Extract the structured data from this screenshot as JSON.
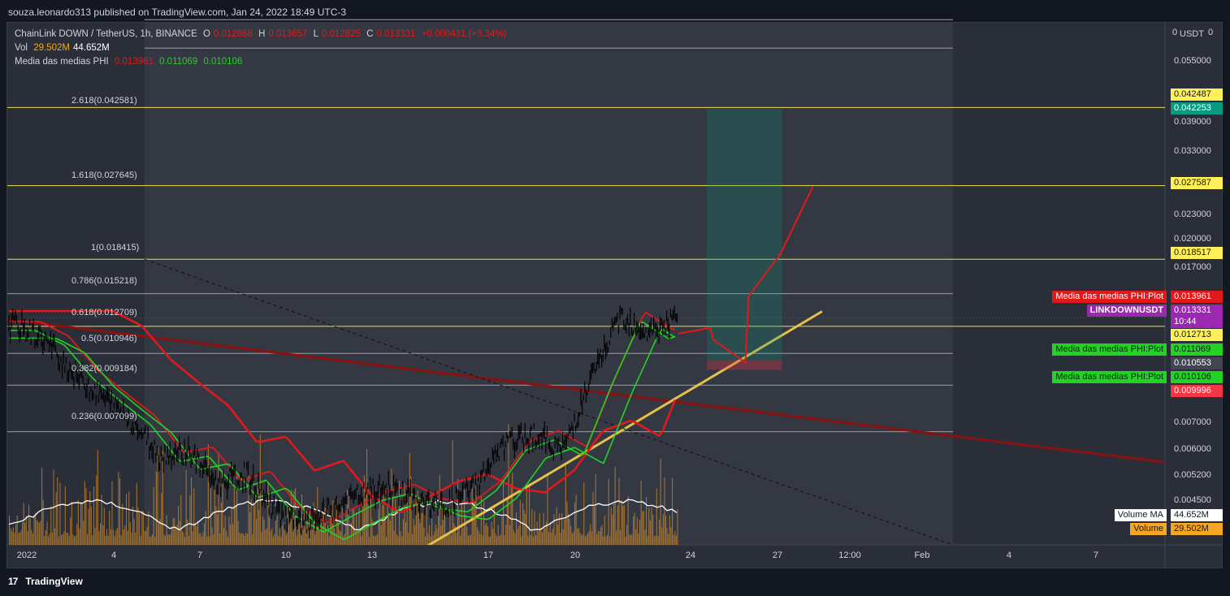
{
  "header": {
    "published": "souza.leonardo313 published on TradingView.com, Jan 24, 2022 18:49 UTC-3"
  },
  "legend": {
    "symbol": "ChainLink DOWN / TetherUS, 1h, BINANCE",
    "o_label": "O",
    "o": "0.012868",
    "h_label": "H",
    "h": "0.013657",
    "l_label": "L",
    "l": "0.012825",
    "c_label": "C",
    "c": "0.013331",
    "chg": "+0.000431 (+3.34%)",
    "vol_label": "Vol",
    "vol": "29.502M",
    "vol_ma": "44.652M",
    "phi_label": "Media das medias PHI",
    "phi1": "0.013961",
    "phi2": "0.011069",
    "phi3": "0.010106"
  },
  "fib_levels": [
    {
      "label": "2.618(0.042581)"
    },
    {
      "label": "1.618(0.027645)"
    },
    {
      "label": "1(0.018415)"
    },
    {
      "label": "0.786(0.015218)"
    },
    {
      "label": "0.618(0.012709)"
    },
    {
      "label": "0.5(0.010946)"
    },
    {
      "label": "0.382(0.009184)"
    },
    {
      "label": "0.236(0.007099)"
    }
  ],
  "y_axis": {
    "unit": "USDT",
    "top_zero": "0",
    "ticks": [
      "0.055000",
      "0.039000",
      "0.033000",
      "0.023000",
      "0.020000",
      "0.017000",
      "0.007000",
      "0.006000",
      "0.005200",
      "0.004500"
    ]
  },
  "price_tags": [
    {
      "text": "0.042487",
      "bg": "#fff059",
      "fg": "#131722"
    },
    {
      "text": "0.042253",
      "bg": "#089981",
      "fg": "#ffffff"
    },
    {
      "text": "0.027587",
      "bg": "#fff059",
      "fg": "#131722"
    },
    {
      "text": "0.018517",
      "bg": "#fff059",
      "fg": "#131722"
    },
    {
      "text": "0.013961",
      "bg": "#e01a1a",
      "fg": "#ffffff"
    },
    {
      "text": "0.013331",
      "bg": "#9c27b0",
      "fg": "#ffffff"
    },
    {
      "text": "10:44",
      "bg": "#9c27b0",
      "fg": "#ffffff"
    },
    {
      "text": "0.012713",
      "bg": "#fff059",
      "fg": "#131722"
    },
    {
      "text": "0.011069",
      "bg": "#22d322",
      "fg": "#131722"
    },
    {
      "text": "0.010553",
      "bg": "#434651",
      "fg": "#ffffff"
    },
    {
      "text": "0.010106",
      "bg": "#22d322",
      "fg": "#131722"
    },
    {
      "text": "0.009996",
      "bg": "#f23645",
      "fg": "#ffffff"
    },
    {
      "text": "44.652M",
      "bg": "#ffffff",
      "fg": "#131722"
    },
    {
      "text": "29.502M",
      "bg": "#f5a623",
      "fg": "#131722"
    }
  ],
  "side_labels": {
    "phi_plot_1": "Media das medias PHI:Plot",
    "symbol_tag": "LINKDOWNUSDT",
    "phi_plot_2": "Media das medias PHI:Plot",
    "phi_plot_3": "Media das medias PHI:Plot",
    "volume_ma": "Volume MA",
    "volume": "Volume"
  },
  "x_axis": {
    "ticks": [
      "2022",
      "4",
      "7",
      "10",
      "13",
      "17",
      "20",
      "24",
      "27",
      "12:00",
      "Feb",
      "4",
      "7"
    ]
  },
  "footer": {
    "brand": "TradingView"
  },
  "colors": {
    "background": "#131722",
    "panel": "#2a2e39",
    "candle": "#000000",
    "phi_red": "#e01a1a",
    "phi_green": "#22d322",
    "trend_yellow": "#e5c04a",
    "trend_darkred": "#8b1010",
    "volume": "#c8862a",
    "fib_line": "#d1d4dc",
    "fib_yellow": "#fff059"
  },
  "chart_data": {
    "type": "line",
    "title": "ChainLink DOWN / TetherUS, 1h, BINANCE",
    "xlabel": "",
    "ylabel": "",
    "y_scale": "log",
    "ylim": [
      0.0038,
      0.068
    ],
    "x_range": [
      "2022-01-01",
      "2022-02-09"
    ],
    "ohlc_last": {
      "open": 0.012868,
      "high": 0.013657,
      "low": 0.012825,
      "close": 0.013331,
      "change": 0.000431,
      "change_pct": 3.34
    },
    "close_path": {
      "x": [
        "2022-01-01",
        "2022-01-02",
        "2022-01-03",
        "2022-01-04",
        "2022-01-05",
        "2022-01-06",
        "2022-01-07",
        "2022-01-08",
        "2022-01-09",
        "2022-01-10",
        "2022-01-11",
        "2022-01-12",
        "2022-01-13",
        "2022-01-14",
        "2022-01-15",
        "2022-01-16",
        "2022-01-17",
        "2022-01-18",
        "2022-01-19",
        "2022-01-20",
        "2022-01-21",
        "2022-01-22",
        "2022-01-23",
        "2022-01-24"
      ],
      "y": [
        0.0128,
        0.0118,
        0.0098,
        0.0086,
        0.0076,
        0.0062,
        0.0064,
        0.0053,
        0.0056,
        0.0046,
        0.0042,
        0.0046,
        0.005,
        0.0052,
        0.0048,
        0.0047,
        0.0053,
        0.0066,
        0.007,
        0.0064,
        0.0095,
        0.0135,
        0.0122,
        0.0133
      ]
    },
    "fibonacci": [
      {
        "ratio": 2.618,
        "price": 0.042581
      },
      {
        "ratio": 1.618,
        "price": 0.027645
      },
      {
        "ratio": 1,
        "price": 0.018415
      },
      {
        "ratio": 0.786,
        "price": 0.015218
      },
      {
        "ratio": 0.618,
        "price": 0.012709
      },
      {
        "ratio": 0.5,
        "price": 0.010946
      },
      {
        "ratio": 0.382,
        "price": 0.009184
      },
      {
        "ratio": 0.236,
        "price": 0.007099
      }
    ],
    "series": [
      {
        "name": "Media das medias PHI",
        "last": 0.013961
      },
      {
        "name": "Media das medias PHI",
        "last": 0.011069
      },
      {
        "name": "Media das medias PHI",
        "last": 0.010106
      },
      {
        "name": "Volume MA",
        "last": "44.652M"
      },
      {
        "name": "Volume",
        "last": "29.502M"
      }
    ],
    "grid": false,
    "legend_position": "top-left"
  }
}
